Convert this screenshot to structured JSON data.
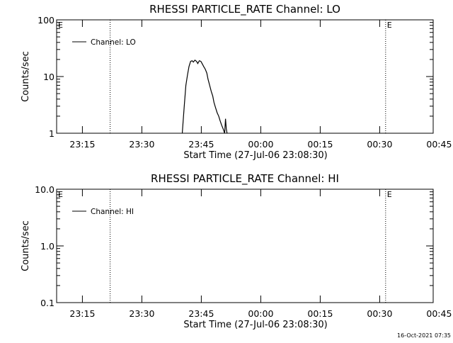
{
  "footer_timestamp": "16-Oct-2021 07:35",
  "chart_data": [
    {
      "type": "line",
      "title": "RHESSI PARTICLE_RATE Channel: LO",
      "xlabel": "Start Time (27-Jul-06 23:08:30)",
      "ylabel": "Counts/sec",
      "yscale": "log",
      "ylim": [
        1,
        100
      ],
      "y_tick_values": [
        1,
        10,
        100
      ],
      "y_tick_labels": [
        "1",
        "10",
        "100"
      ],
      "x_unit": "minutes after 23:08:30",
      "xlim": [
        0,
        95
      ],
      "x_tick_values": [
        6.5,
        21.5,
        36.5,
        51.5,
        66.5,
        81.5,
        96.5
      ],
      "x_tick_labels": [
        "23:15",
        "23:30",
        "23:45",
        "00:00",
        "00:15",
        "00:30",
        "00:45"
      ],
      "event_lines": [
        {
          "x": 13.5,
          "label": ""
        },
        {
          "x": 83.0,
          "label": "E"
        },
        {
          "x": 96.0,
          "label": ""
        }
      ],
      "corner_marker": "E",
      "legend": {
        "placement": "top-left"
      },
      "series": [
        {
          "name": "Channel: LO",
          "x": [
            31.7,
            32.2,
            32.6,
            33.0,
            33.4,
            33.8,
            34.2,
            34.5,
            34.9,
            35.3,
            35.6,
            36.0,
            36.4,
            36.7,
            37.1,
            37.5,
            37.9,
            38.2,
            38.6,
            39.0,
            39.4,
            39.7,
            40.1,
            40.5,
            40.9,
            41.2,
            41.6,
            42.0,
            42.4,
            42.6,
            42.8,
            43.0
          ],
          "values": [
            1.0,
            3.0,
            7.0,
            10.5,
            15.0,
            18.5,
            19.0,
            18.0,
            19.5,
            18.5,
            17.0,
            19.0,
            18.5,
            17.0,
            15.0,
            13.5,
            11.5,
            9.0,
            7.0,
            5.5,
            4.5,
            3.5,
            2.8,
            2.3,
            2.0,
            1.7,
            1.4,
            1.2,
            1.0,
            1.8,
            1.2,
            1.0
          ]
        }
      ]
    },
    {
      "type": "line",
      "title": "RHESSI PARTICLE_RATE Channel: HI",
      "xlabel": "Start Time (27-Jul-06 23:08:30)",
      "ylabel": "Counts/sec",
      "yscale": "log",
      "ylim": [
        0.1,
        10
      ],
      "y_tick_values": [
        0.1,
        1,
        10
      ],
      "y_tick_labels": [
        "0.1",
        "1.0",
        "10.0"
      ],
      "x_unit": "minutes after 23:08:30",
      "xlim": [
        0,
        95
      ],
      "x_tick_values": [
        6.5,
        21.5,
        36.5,
        51.5,
        66.5,
        81.5,
        96.5
      ],
      "x_tick_labels": [
        "23:15",
        "23:30",
        "23:45",
        "00:00",
        "00:15",
        "00:30",
        "00:45"
      ],
      "event_lines": [
        {
          "x": 13.5,
          "label": ""
        },
        {
          "x": 83.0,
          "label": "E"
        },
        {
          "x": 96.0,
          "label": ""
        }
      ],
      "corner_marker": "E",
      "legend": {
        "placement": "top-left"
      },
      "series": [
        {
          "name": "Channel: HI",
          "x": [],
          "values": []
        }
      ]
    }
  ]
}
